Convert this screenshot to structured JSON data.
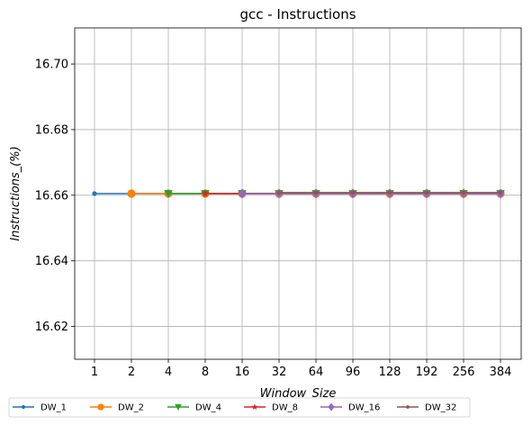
{
  "chart_data": {
    "type": "line",
    "title": "gcc - Instructions",
    "xlabel": "Window_Size",
    "ylabel": "Instructions_(%)",
    "categories": [
      "1",
      "2",
      "4",
      "8",
      "16",
      "32",
      "64",
      "96",
      "128",
      "192",
      "256",
      "384"
    ],
    "ylim": [
      16.61,
      16.711
    ],
    "yticks": [
      "16.62",
      "16.64",
      "16.66",
      "16.68",
      "16.70"
    ],
    "grid": true,
    "legend_position": "bottom",
    "series": [
      {
        "name": "DW_1",
        "color": "#1f77b4",
        "marker": "point",
        "values": [
          16.6605,
          16.6605,
          16.6605,
          16.6605,
          16.6605,
          16.6605,
          16.6605,
          16.6605,
          16.6605,
          16.6605,
          16.6605,
          16.6605
        ]
      },
      {
        "name": "DW_2",
        "color": "#ff7f0e",
        "marker": "circle",
        "values": [
          null,
          16.6605,
          16.6605,
          16.6605,
          16.6605,
          16.6605,
          16.6605,
          16.6605,
          16.6605,
          16.6605,
          16.6605,
          16.6605
        ]
      },
      {
        "name": "DW_4",
        "color": "#2ca02c",
        "marker": "triangle-down",
        "values": [
          null,
          null,
          16.6605,
          16.6605,
          16.6605,
          16.6605,
          16.6605,
          16.6605,
          16.6605,
          16.6605,
          16.6605,
          16.6605
        ]
      },
      {
        "name": "DW_8",
        "color": "#d62728",
        "marker": "star",
        "values": [
          null,
          null,
          null,
          16.6605,
          16.6605,
          16.6605,
          16.6605,
          16.6605,
          16.6605,
          16.6605,
          16.6605,
          16.6605
        ]
      },
      {
        "name": "DW_16",
        "color": "#9467bd",
        "marker": "diamond",
        "values": [
          null,
          null,
          null,
          null,
          16.6605,
          16.6605,
          16.6605,
          16.6605,
          16.6605,
          16.6605,
          16.6605,
          16.6605
        ]
      },
      {
        "name": "DW_32",
        "color": "#8c564b",
        "marker": "small-circle",
        "values": [
          null,
          null,
          null,
          null,
          null,
          16.6608,
          16.6608,
          16.6608,
          16.6608,
          16.6608,
          16.6608,
          16.6608
        ]
      }
    ]
  }
}
